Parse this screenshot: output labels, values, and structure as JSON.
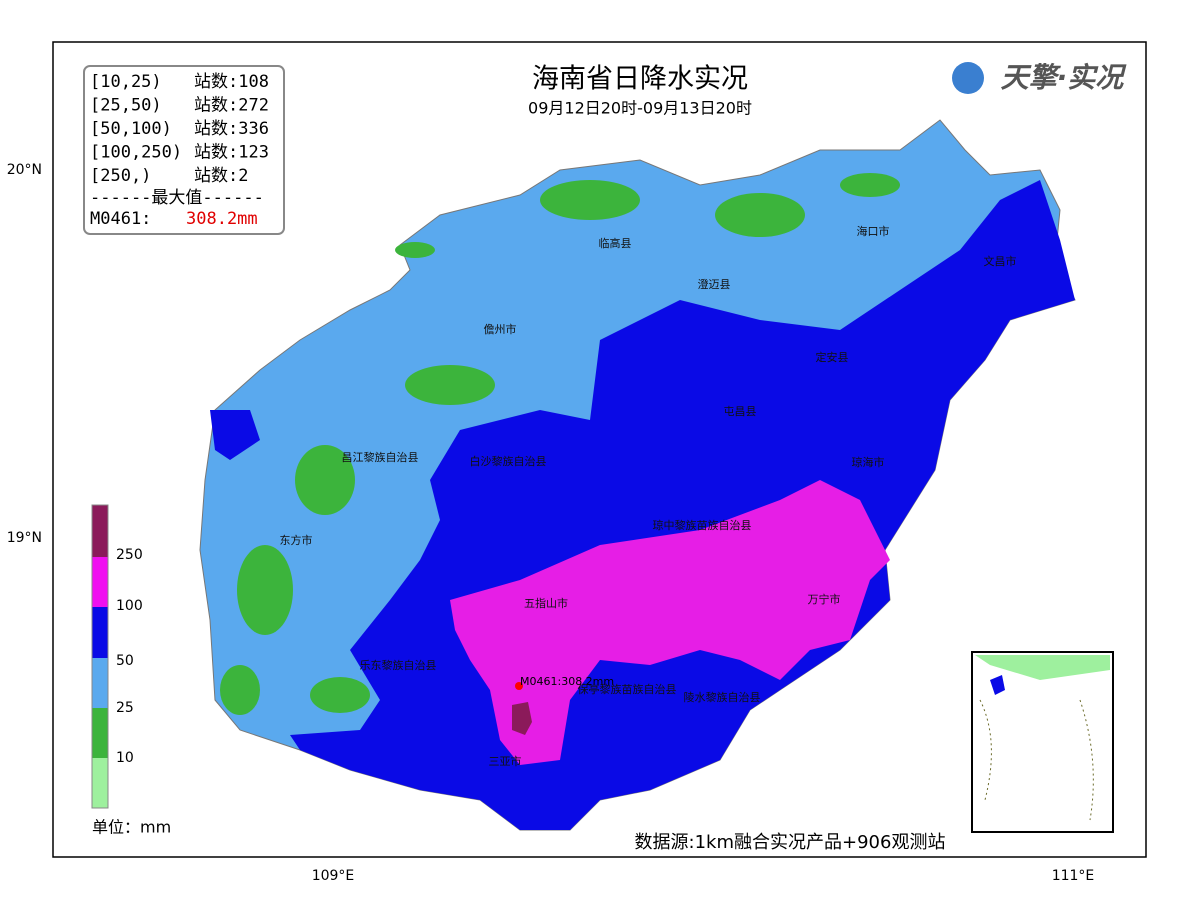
{
  "header": {
    "title": "海南省日降水实况",
    "subtitle": "09月12日20时-09月13日20时",
    "logo": "天擎·实况"
  },
  "stats": {
    "rows": [
      {
        "range": "[10,25)",
        "count": "站数:108"
      },
      {
        "range": "[25,50)",
        "count": "站数:272"
      },
      {
        "range": "[50,100)",
        "count": "站数:336"
      },
      {
        "range": "[100,250)",
        "count": "站数:123"
      },
      {
        "range": "[250,)",
        "count": "站数:2"
      }
    ],
    "max_heading": "------最大值------",
    "max_station": "M0461:",
    "max_value": "308.2mm"
  },
  "legend": {
    "labels": [
      "250",
      "100",
      "50",
      "25",
      "10"
    ],
    "unit": "单位：mm"
  },
  "axes": {
    "lat": [
      "20°N",
      "19°N"
    ],
    "lon": [
      "109°E",
      "111°E"
    ]
  },
  "cities": [
    "临高县",
    "海口市",
    "文昌市",
    "澄迈县",
    "儋州市",
    "定安县",
    "屯昌县",
    "昌江黎族自治县",
    "白沙黎族自治县",
    "琼海市",
    "琼中黎族苗族自治县",
    "东方市",
    "五指山市",
    "万宁市",
    "乐东黎族自治县",
    "保亭黎族苗族自治县",
    "陵水黎族自治县",
    "三亚市"
  ],
  "max_marker": "M0461:308.2mm",
  "source": "数据源:1km融合实况产品+906观测站"
}
